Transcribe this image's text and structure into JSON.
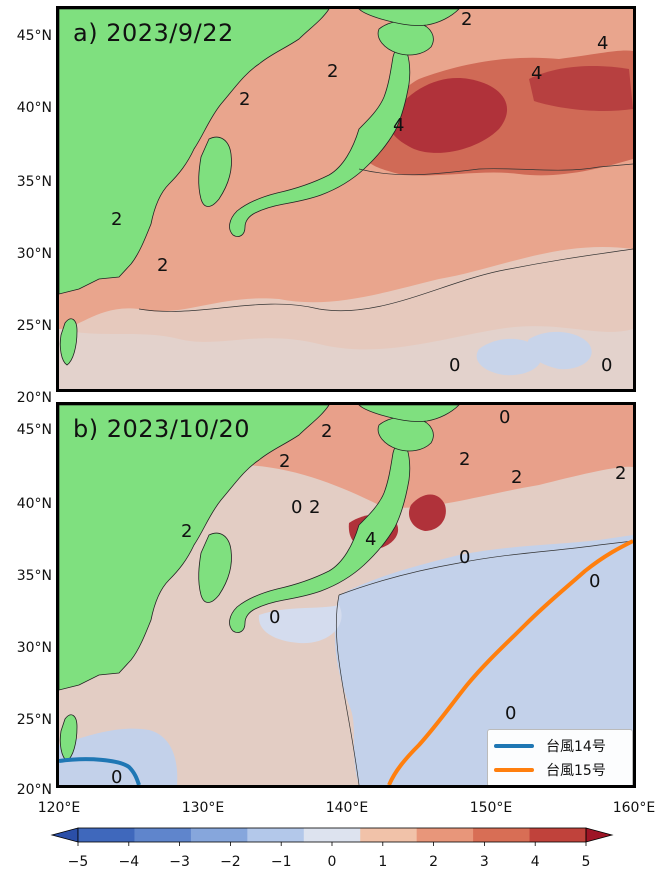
{
  "panels": [
    {
      "title": "a) 2023/9/22"
    },
    {
      "title": "b) 2023/10/20"
    }
  ],
  "lat_ticks": [
    "45°N",
    "40°N",
    "35°N",
    "30°N",
    "25°N",
    "20°N"
  ],
  "lon_ticks": [
    "120°E",
    "130°E",
    "140°E",
    "150°E",
    "160°E"
  ],
  "legend": {
    "items": [
      {
        "label": "台風14号",
        "color": "#1f77b4"
      },
      {
        "label": "台風15号",
        "color": "#ff7f0e"
      }
    ]
  },
  "colorbar": {
    "ticks": [
      "−5",
      "−4",
      "−3",
      "−2",
      "−1",
      "0",
      "1",
      "2",
      "3",
      "4",
      "5"
    ],
    "colors": [
      "#2b4fa8",
      "#3f68bc",
      "#5f85cc",
      "#86a6dc",
      "#b3c8ea",
      "#dde3ef",
      "#f1c2a9",
      "#e8967a",
      "#d86e55",
      "#c0423b",
      "#9e1526"
    ]
  },
  "contour_labels_a": [
    "2",
    "2",
    "2",
    "2",
    "2",
    "4",
    "4",
    "4",
    "0",
    "0"
  ],
  "contour_labels_b": [
    "2",
    "2",
    "2",
    "2",
    "0",
    "2",
    "4",
    "2",
    "0",
    "0",
    "2",
    "0",
    "0",
    "0",
    "0"
  ],
  "colors": {
    "land": "#7fe07f",
    "ocean_neutral": "#e9d7d0",
    "warm": "#e8967a",
    "hot": "#c0423b",
    "cool": "#b8c9e6"
  }
}
